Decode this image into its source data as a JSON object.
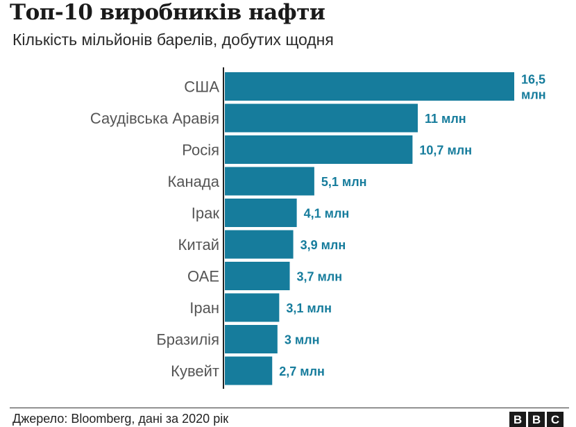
{
  "header": {
    "title": "Топ-10 виробників нафти",
    "subtitle": "Кількість мільйонів барелів, добутих щодня"
  },
  "footer": {
    "source": "Джерело: Bloomberg, дані за 2020 рік",
    "logo": [
      "B",
      "B",
      "C"
    ]
  },
  "colors": {
    "bar": "#167c9c",
    "value_label": "#167c9c",
    "axis": "#222222"
  },
  "chart_data": {
    "type": "bar",
    "orientation": "horizontal",
    "title": "Топ-10 виробників нафти",
    "subtitle": "Кількість мільйонів барелів, добутих щодня",
    "categories": [
      "США",
      "Саудівська Аравія",
      "Росія",
      "Канада",
      "Ірак",
      "Китай",
      "ОАЕ",
      "Іран",
      "Бразилія",
      "Кувейт"
    ],
    "values": [
      16.5,
      11,
      10.7,
      5.1,
      4.1,
      3.9,
      3.7,
      3.1,
      3,
      2.7
    ],
    "value_labels": [
      "16,5 млн",
      "11 млн",
      "10,7 млн",
      "5,1 млн",
      "4,1 млн",
      "3,9 млн",
      "3,7 млн",
      "3,1 млн",
      "3 млн",
      "2,7 млн"
    ],
    "xlim": [
      0,
      16.5
    ],
    "grid": false,
    "legend": "none"
  }
}
